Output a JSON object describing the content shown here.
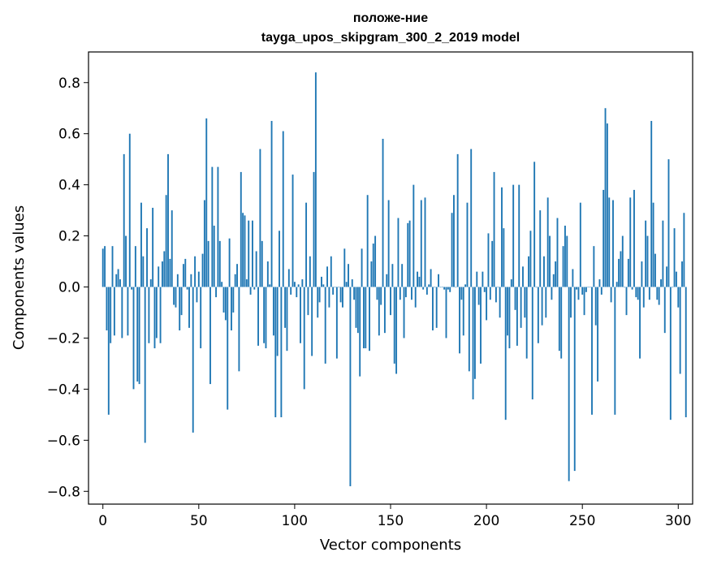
{
  "chart_data": {
    "type": "bar",
    "title": "положе-ние",
    "subtitle": "tayga_upos_skipgram_300_2_2019 model",
    "xlabel": "Vector components",
    "ylabel": "Components values",
    "xlim": [
      -7.5,
      307.5
    ],
    "ylim": [
      -0.85,
      0.92
    ],
    "xticks": [
      0,
      50,
      100,
      150,
      200,
      250,
      300
    ],
    "yticks": [
      -0.8,
      -0.6,
      -0.4,
      -0.2,
      0.0,
      0.2,
      0.4,
      0.6,
      0.8
    ],
    "xtick_labels": [
      "0",
      "50",
      "100",
      "150",
      "200",
      "250",
      "300"
    ],
    "ytick_labels": [
      "−0.8",
      "−0.6",
      "−0.4",
      "−0.2",
      "0.0",
      "0.2",
      "0.4",
      "0.6",
      "0.8"
    ],
    "bar_color": "#1f77b4",
    "values": [
      0.15,
      0.16,
      -0.17,
      -0.5,
      -0.22,
      0.16,
      -0.19,
      0.05,
      0.07,
      0.03,
      -0.2,
      0.52,
      0.2,
      -0.19,
      0.6,
      -0.01,
      -0.4,
      0.16,
      -0.37,
      -0.38,
      0.33,
      0.12,
      -0.61,
      0.23,
      -0.22,
      0.03,
      0.31,
      -0.24,
      -0.2,
      0.08,
      -0.22,
      0.1,
      0.14,
      0.36,
      0.52,
      0.11,
      0.3,
      -0.07,
      -0.08,
      0.05,
      -0.17,
      -0.11,
      0.09,
      0.11,
      -0.01,
      -0.16,
      0.05,
      -0.57,
      0.12,
      -0.06,
      0.06,
      -0.24,
      0.13,
      0.34,
      0.66,
      0.18,
      -0.38,
      0.47,
      0.24,
      -0.04,
      0.47,
      0.18,
      0.02,
      -0.1,
      -0.13,
      -0.48,
      0.19,
      -0.17,
      -0.1,
      0.05,
      0.09,
      -0.33,
      0.45,
      0.29,
      0.28,
      0.03,
      0.26,
      -0.03,
      0.26,
      -0.01,
      0.14,
      -0.23,
      0.54,
      0.18,
      -0.22,
      -0.24,
      0.1,
      0.01,
      0.65,
      -0.19,
      -0.51,
      -0.27,
      0.22,
      -0.51,
      0.61,
      -0.16,
      -0.25,
      0.07,
      -0.03,
      0.44,
      0.02,
      -0.04,
      0.01,
      -0.22,
      0.03,
      -0.4,
      0.33,
      -0.11,
      0.12,
      -0.27,
      0.45,
      0.84,
      -0.12,
      -0.06,
      0.04,
      0.01,
      -0.3,
      0.08,
      -0.08,
      0.12,
      -0.03,
      0.0,
      -0.28,
      0.0,
      -0.06,
      -0.08,
      0.15,
      0.02,
      0.09,
      -0.78,
      0.03,
      -0.05,
      -0.16,
      -0.18,
      -0.35,
      0.15,
      -0.24,
      -0.24,
      0.36,
      -0.25,
      0.1,
      0.17,
      0.2,
      -0.05,
      -0.19,
      -0.07,
      0.58,
      -0.18,
      0.05,
      0.34,
      -0.11,
      0.09,
      -0.3,
      -0.34,
      0.27,
      -0.05,
      0.09,
      -0.2,
      -0.04,
      0.25,
      0.26,
      -0.05,
      0.4,
      -0.08,
      0.06,
      0.04,
      0.34,
      -0.01,
      0.35,
      -0.03,
      0.01,
      0.07,
      -0.17,
      0.0,
      -0.16,
      0.05,
      0.0,
      0.0,
      -0.01,
      -0.2,
      -0.01,
      -0.02,
      0.29,
      0.36,
      0.0,
      0.52,
      -0.26,
      -0.05,
      -0.19,
      0.01,
      0.33,
      -0.33,
      0.54,
      -0.44,
      -0.36,
      0.06,
      -0.07,
      -0.3,
      0.06,
      -0.02,
      -0.13,
      0.21,
      -0.05,
      0.18,
      0.45,
      -0.06,
      0.0,
      -0.12,
      0.39,
      0.23,
      -0.52,
      -0.19,
      -0.24,
      0.03,
      0.4,
      -0.09,
      -0.23,
      0.4,
      -0.16,
      0.08,
      -0.12,
      -0.28,
      0.12,
      0.22,
      -0.44,
      0.49,
      0.0,
      -0.22,
      0.3,
      -0.15,
      0.12,
      -0.12,
      0.35,
      0.2,
      -0.05,
      0.05,
      0.1,
      0.27,
      -0.25,
      -0.28,
      0.16,
      0.24,
      0.2,
      -0.76,
      -0.12,
      0.07,
      -0.72,
      -0.01,
      -0.05,
      0.33,
      -0.03,
      -0.11,
      -0.02,
      0.0,
      0.0,
      -0.5,
      0.16,
      -0.15,
      -0.37,
      0.03,
      -0.03,
      0.38,
      0.7,
      0.64,
      0.35,
      -0.06,
      0.34,
      -0.5,
      0.02,
      0.11,
      0.14,
      0.2,
      0.0,
      -0.11,
      0.11,
      0.35,
      -0.01,
      0.38,
      -0.04,
      -0.05,
      -0.28,
      0.1,
      -0.08,
      0.26,
      0.2,
      -0.05,
      0.65,
      0.33,
      0.13,
      -0.05,
      -0.07,
      0.03,
      0.26,
      -0.18,
      0.08,
      0.5,
      -0.52,
      0.0,
      0.23,
      0.06,
      -0.08,
      -0.34,
      0.1,
      0.29,
      -0.51
    ]
  }
}
